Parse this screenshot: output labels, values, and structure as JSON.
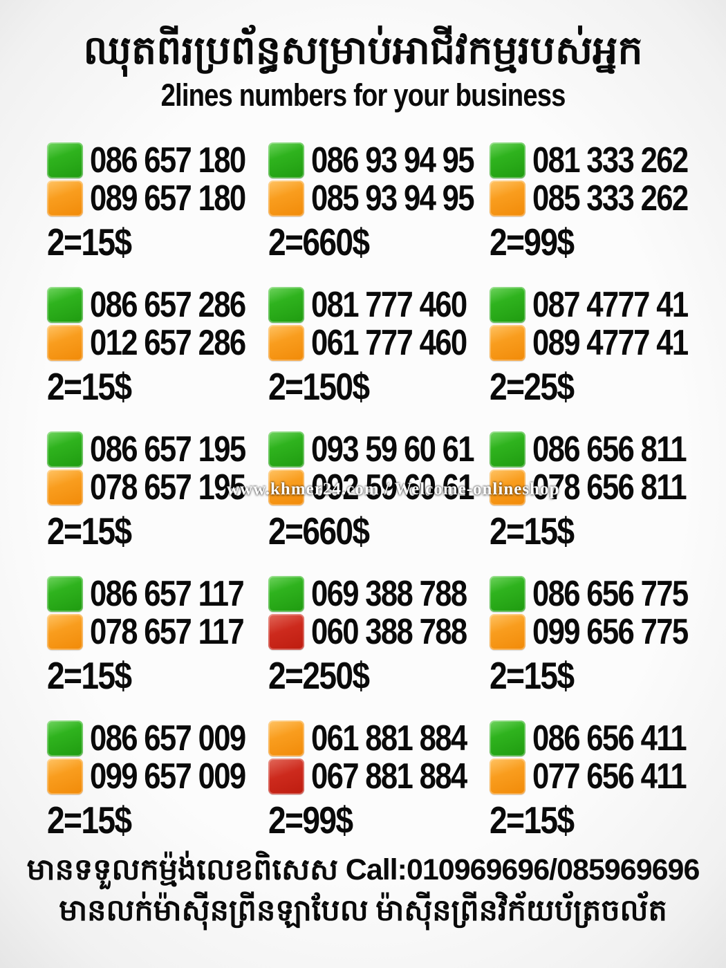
{
  "header": {
    "title_khmer": "ឈុតពីរប្រព័ន្ធសម្រាប់អាជីវកម្មរបស់អ្នក",
    "subtitle_english": "2lines numbers for your business"
  },
  "colors": {
    "green": "#1f9b10",
    "orange": "#f18a08",
    "red": "#c9241a",
    "text": "#0a0a0a",
    "background": "#f7f7f7"
  },
  "grid": {
    "cards": [
      {
        "lines": [
          {
            "color": "green",
            "number": "086 657 180"
          },
          {
            "color": "orange",
            "number": "089 657 180"
          }
        ],
        "price": "2=15$"
      },
      {
        "lines": [
          {
            "color": "green",
            "number": "086 93 94 95"
          },
          {
            "color": "orange",
            "number": "085 93 94 95"
          }
        ],
        "price": "2=660$"
      },
      {
        "lines": [
          {
            "color": "green",
            "number": "081 333 262"
          },
          {
            "color": "orange",
            "number": "085 333 262"
          }
        ],
        "price": "2=99$"
      },
      {
        "lines": [
          {
            "color": "green",
            "number": "086 657 286"
          },
          {
            "color": "orange",
            "number": "012 657 286"
          }
        ],
        "price": "2=15$"
      },
      {
        "lines": [
          {
            "color": "green",
            "number": "081 777 460"
          },
          {
            "color": "orange",
            "number": "061 777 460"
          }
        ],
        "price": "2=150$"
      },
      {
        "lines": [
          {
            "color": "green",
            "number": "087 4777 41"
          },
          {
            "color": "orange",
            "number": "089 4777 41"
          }
        ],
        "price": "2=25$"
      },
      {
        "lines": [
          {
            "color": "green",
            "number": "086 657 195"
          },
          {
            "color": "orange",
            "number": "078 657 195"
          }
        ],
        "price": "2=15$"
      },
      {
        "lines": [
          {
            "color": "green",
            "number": "093 59 60 61"
          },
          {
            "color": "orange",
            "number": "092 59 60 61"
          }
        ],
        "price": "2=660$"
      },
      {
        "lines": [
          {
            "color": "green",
            "number": "086 656 811"
          },
          {
            "color": "orange",
            "number": "078 656 811"
          }
        ],
        "price": "2=15$"
      },
      {
        "lines": [
          {
            "color": "green",
            "number": "086 657 117"
          },
          {
            "color": "orange",
            "number": "078 657 117"
          }
        ],
        "price": "2=15$"
      },
      {
        "lines": [
          {
            "color": "green",
            "number": "069 388 788"
          },
          {
            "color": "red",
            "number": "060 388 788"
          }
        ],
        "price": "2=250$"
      },
      {
        "lines": [
          {
            "color": "green",
            "number": "086 656 775"
          },
          {
            "color": "orange",
            "number": "099 656 775"
          }
        ],
        "price": "2=15$"
      },
      {
        "lines": [
          {
            "color": "green",
            "number": "086 657 009"
          },
          {
            "color": "orange",
            "number": "099 657 009"
          }
        ],
        "price": "2=15$"
      },
      {
        "lines": [
          {
            "color": "orange",
            "number": "061 881 884"
          },
          {
            "color": "red",
            "number": "067 881 884"
          }
        ],
        "price": "2=99$"
      },
      {
        "lines": [
          {
            "color": "green",
            "number": "086 656 411"
          },
          {
            "color": "orange",
            "number": "077 656 411"
          }
        ],
        "price": "2=15$"
      }
    ]
  },
  "watermark": "www.khmer24.com / Welcome-onlineshop",
  "footer": {
    "line1_khmer": "មានទទួលកម្ម៉ង់លេខពិសេស",
    "line1_call": "Call:010969696/085969696",
    "line2_khmer": "មានលក់ម៉ាស៊ីនព្រីនឡាបែល ម៉ាស៊ីនព្រីនវិក័យប័ត្រចល័ត"
  }
}
